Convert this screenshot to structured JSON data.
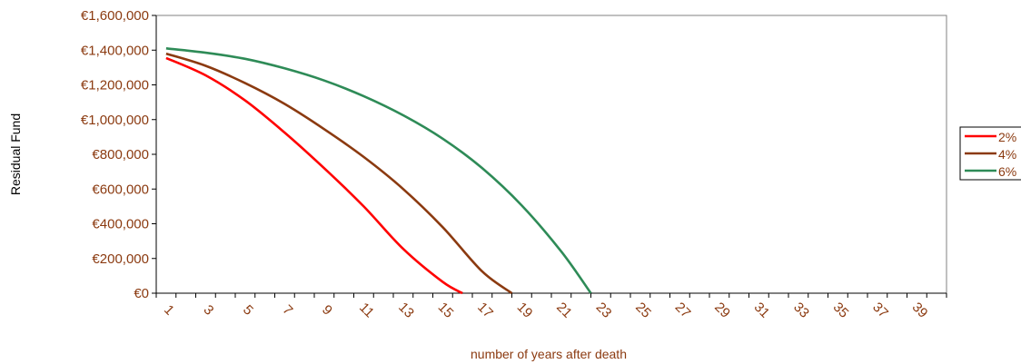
{
  "chart_data": {
    "type": "line",
    "title": "",
    "xlabel": "number of years after death",
    "ylabel": "Residual Fund",
    "x_range": [
      1,
      40
    ],
    "x_tick_labels": [
      "1",
      "3",
      "5",
      "7",
      "9",
      "11",
      "13",
      "15",
      "17",
      "19",
      "21",
      "23",
      "25",
      "27",
      "29",
      "31",
      "33",
      "35",
      "37",
      "39"
    ],
    "y_tick_labels": [
      "€0",
      "€200,000",
      "€400,000",
      "€600,000",
      "€800,000",
      "€1,000,000",
      "€1,200,000",
      "€1,400,000",
      "€1,600,000"
    ],
    "ylim": [
      0,
      1600000
    ],
    "grid": false,
    "legend_position": "right",
    "series": [
      {
        "name": "2%",
        "color": "#ff0000",
        "x": [
          1,
          3,
          5,
          7,
          9,
          11,
          13,
          15,
          16
        ],
        "values": [
          1355000,
          1255000,
          1110000,
          925000,
          720000,
          500000,
          255000,
          65000,
          0
        ]
      },
      {
        "name": "4%",
        "color": "#8B3A10",
        "x": [
          1,
          3,
          5,
          7,
          9,
          11,
          13,
          15,
          17,
          18.5
        ],
        "values": [
          1380000,
          1310000,
          1210000,
          1090000,
          945000,
          785000,
          600000,
          380000,
          125000,
          0
        ]
      },
      {
        "name": "6%",
        "color": "#2e8b57",
        "x": [
          1,
          3,
          5,
          7,
          9,
          11,
          13,
          15,
          17,
          19,
          21,
          22.5
        ],
        "values": [
          1410000,
          1385000,
          1350000,
          1295000,
          1225000,
          1135000,
          1025000,
          890000,
          720000,
          505000,
          240000,
          0
        ]
      }
    ]
  }
}
